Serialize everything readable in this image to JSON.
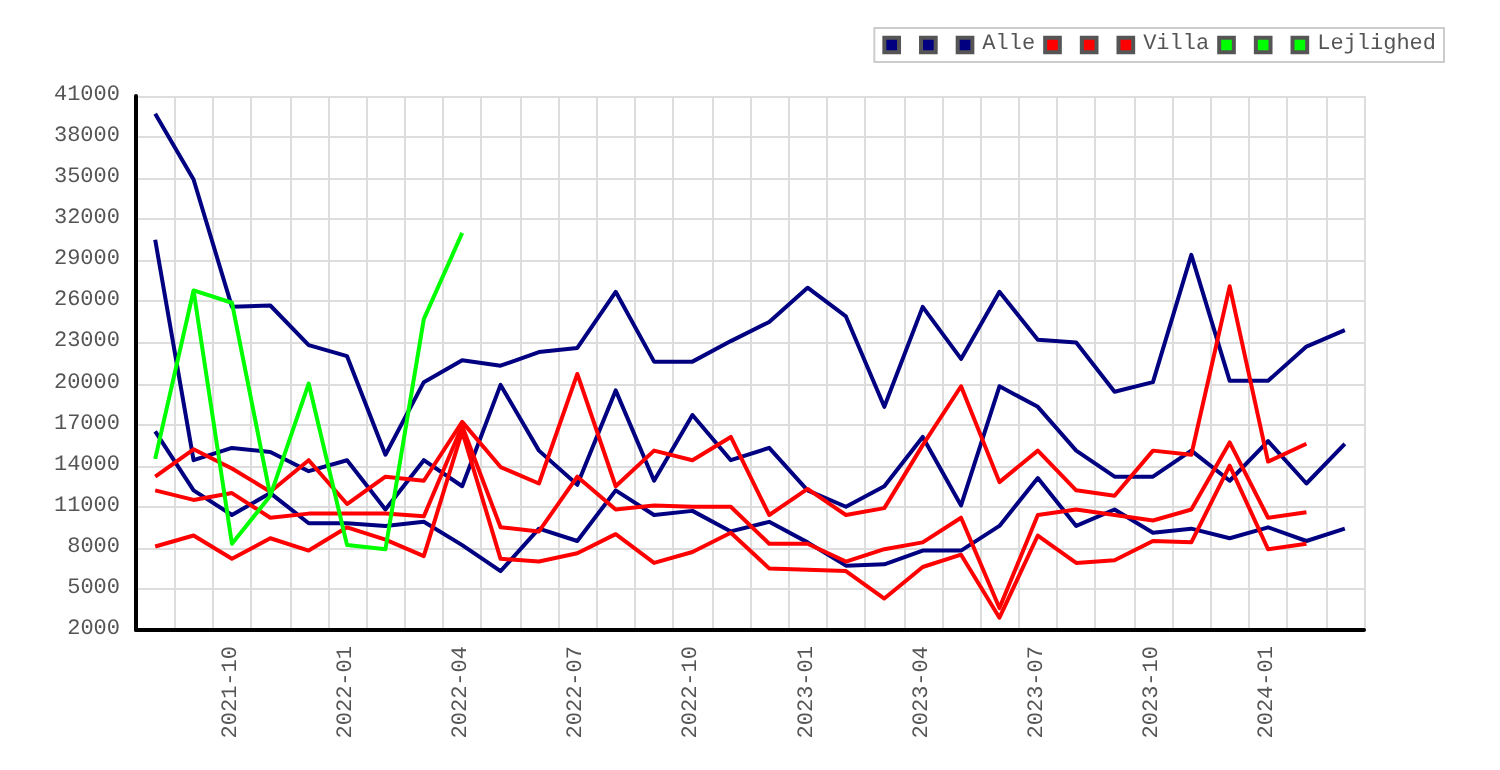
{
  "chart_data": {
    "type": "line",
    "categories": [
      null,
      null,
      "2021-10",
      null,
      null,
      "2022-01",
      null,
      null,
      "2022-04",
      null,
      null,
      "2022-07",
      null,
      null,
      "2022-10",
      null,
      null,
      "2023-01",
      null,
      null,
      "2023-04",
      null,
      null,
      "2023-07",
      null,
      null,
      "2023-10",
      null,
      null,
      "2024-01",
      null,
      null
    ],
    "series": [
      {
        "color": "#000080",
        "values": [
          39700,
          34900,
          25600,
          25700,
          22800,
          22000,
          14800,
          20100,
          21700,
          21300,
          22300,
          22600,
          26700,
          21600,
          21600,
          23100,
          24500,
          27000,
          24900,
          18300,
          25600,
          21800,
          26700,
          23200,
          23000,
          19400,
          20100,
          29400,
          20200,
          20200,
          22700,
          23900
        ]
      },
      {
        "color": "#000080",
        "values": [
          30500,
          14400,
          15300,
          15000,
          13600,
          14400,
          10800,
          14400,
          12500,
          19900,
          15100,
          12600,
          19500,
          12900,
          17700,
          14400,
          15300,
          12200,
          11000,
          12500,
          16100,
          11100,
          19800,
          18300,
          15100,
          13200,
          13200,
          15100,
          12900,
          15800,
          12700,
          15600
        ]
      },
      {
        "name": "Alle",
        "color": "#000080",
        "values": [
          16500,
          12200,
          10400,
          12000,
          9800,
          9800,
          9600,
          9900,
          8200,
          6300,
          9400,
          8500,
          12200,
          10400,
          10700,
          9200,
          9900,
          8400,
          6700,
          6800,
          7800,
          7800,
          9600,
          13100,
          9600,
          10800,
          9100,
          9400,
          8700,
          9500,
          8500,
          9400
        ]
      },
      {
        "color": "#ff0000",
        "values": [
          13200,
          15200,
          13800,
          12100,
          14400,
          11200,
          13200,
          12900,
          17200,
          13900,
          12700,
          20700,
          12500,
          15100,
          14400,
          16100,
          10400,
          12300,
          10400,
          10900,
          15500,
          19800,
          12800,
          15100,
          12200,
          11800,
          15100,
          14800,
          27100,
          14300,
          15600,
          null
        ]
      },
      {
        "color": "#ff0000",
        "values": [
          12200,
          11500,
          12000,
          10200,
          10500,
          10500,
          10500,
          10300,
          16900,
          9500,
          9200,
          13200,
          10800,
          11100,
          11000,
          11000,
          8300,
          8300,
          7000,
          7900,
          8400,
          10200,
          3600,
          10400,
          10800,
          10400,
          10000,
          10800,
          15700,
          10200,
          10600,
          null
        ]
      },
      {
        "name": "Villa",
        "color": "#ff0000",
        "values": [
          8100,
          8900,
          7200,
          8700,
          7800,
          9500,
          8600,
          7400,
          16500,
          7200,
          7000,
          7600,
          9000,
          6900,
          7700,
          9100,
          6500,
          6400,
          6300,
          4300,
          6600,
          7500,
          2900,
          8900,
          6900,
          7100,
          8500,
          8400,
          14000,
          7900,
          8300,
          null
        ]
      },
      {
        "color": "#00ff00",
        "values": [
          null,
          26800,
          8300,
          11800,
          null,
          null,
          null,
          null,
          null,
          null,
          null,
          null,
          null,
          null,
          null,
          null,
          null,
          null,
          null,
          null,
          null,
          null,
          null,
          null,
          null,
          null,
          null,
          null,
          null,
          null,
          null,
          null
        ]
      },
      {
        "name": "Lejlighed",
        "color": "#00ff00",
        "values": [
          14500,
          26800,
          25900,
          11800,
          20000,
          8200,
          7900,
          24700,
          31000,
          null,
          null,
          null,
          null,
          null,
          null,
          null,
          null,
          null,
          null,
          null,
          null,
          null,
          null,
          null,
          null,
          null,
          null,
          null,
          null,
          null,
          null,
          null
        ]
      }
    ],
    "ylim": [
      2000,
      41000
    ],
    "yticks": [
      2000,
      5000,
      8000,
      11000,
      14000,
      17000,
      20000,
      23000,
      26000,
      29000,
      32000,
      35000,
      38000,
      41000
    ],
    "grid": true,
    "legend": "top right",
    "marker": "none"
  }
}
